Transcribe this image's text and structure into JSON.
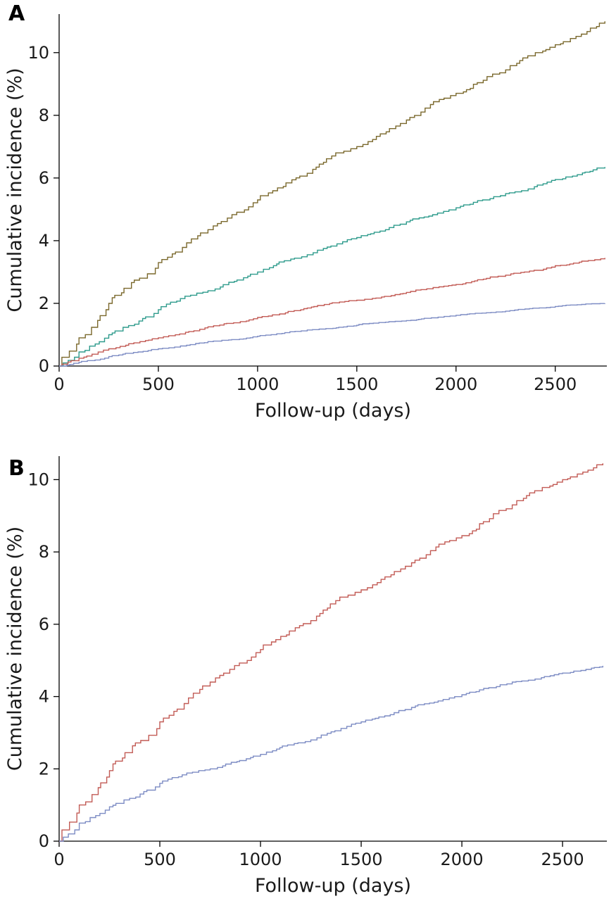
{
  "figure": {
    "panel_a_letter": "A",
    "panel_b_letter": "B"
  },
  "colors": {
    "axis": "#000000",
    "tick_text": "#1a1a1a",
    "brown": "#7a682c",
    "teal": "#2e9b8c",
    "red": "#c25b55",
    "blue": "#7d8cc4"
  },
  "chart_data": [
    {
      "id": "panel_a",
      "type": "line",
      "style": "step",
      "panel_label": "A",
      "title": "",
      "xlabel": "Follow-up (days)",
      "ylabel": "Cumulative incidence (%)",
      "xlim": [
        0,
        2760
      ],
      "ylim": [
        0,
        11.23
      ],
      "xticks": [
        0,
        500,
        1000,
        1500,
        2000,
        2500
      ],
      "yticks": [
        0,
        2,
        4,
        6,
        8,
        10
      ],
      "grid": false,
      "legend": "none",
      "x": [
        0,
        100,
        250,
        500,
        750,
        1000,
        1250,
        1500,
        1750,
        2000,
        2250,
        2500,
        2750
      ],
      "series": [
        {
          "name": "brown-curve",
          "color": "#7a682c",
          "values": [
            0,
            0.9,
            2.0,
            3.3,
            4.35,
            5.3,
            6.15,
            7.0,
            7.85,
            8.7,
            9.45,
            10.25,
            11.0
          ]
        },
        {
          "name": "teal-curve",
          "color": "#2e9b8c",
          "values": [
            0,
            0.45,
            1.0,
            1.8,
            2.4,
            3.0,
            3.55,
            4.1,
            4.6,
            5.05,
            5.5,
            5.95,
            6.35
          ]
        },
        {
          "name": "red-curve",
          "color": "#c25b55",
          "values": [
            0,
            0.25,
            0.55,
            0.9,
            1.25,
            1.55,
            1.85,
            2.1,
            2.35,
            2.6,
            2.9,
            3.2,
            3.45
          ]
        },
        {
          "name": "blue-curve",
          "color": "#7d8cc4",
          "values": [
            0,
            0.12,
            0.3,
            0.55,
            0.78,
            0.95,
            1.15,
            1.3,
            1.45,
            1.62,
            1.75,
            1.9,
            2.0
          ]
        }
      ]
    },
    {
      "id": "panel_b",
      "type": "line",
      "style": "step",
      "panel_label": "B",
      "title": "",
      "xlabel": "Follow-up (days)",
      "ylabel": "Cumulative incidence (%)",
      "xlim": [
        0,
        2720
      ],
      "ylim": [
        0,
        10.65
      ],
      "xticks": [
        0,
        500,
        1000,
        1500,
        2000,
        2500
      ],
      "yticks": [
        0,
        2,
        4,
        6,
        8,
        10
      ],
      "grid": false,
      "legend": "none",
      "x": [
        0,
        100,
        250,
        500,
        750,
        1000,
        1250,
        1500,
        1750,
        2000,
        2250,
        2500,
        2700
      ],
      "series": [
        {
          "name": "red-curve",
          "color": "#c25b55",
          "values": [
            0,
            1.0,
            1.95,
            3.3,
            4.4,
            5.3,
            6.1,
            6.95,
            7.7,
            8.45,
            9.3,
            10.0,
            10.45
          ]
        },
        {
          "name": "blue-curve",
          "color": "#7d8cc4",
          "values": [
            0,
            0.5,
            0.95,
            1.6,
            2.0,
            2.4,
            2.8,
            3.3,
            3.7,
            4.05,
            4.4,
            4.65,
            4.85
          ]
        }
      ]
    }
  ]
}
